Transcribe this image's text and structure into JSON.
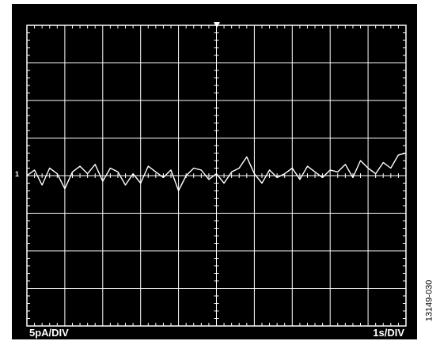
{
  "chart_data": {
    "type": "line",
    "title": "",
    "xlabel": "",
    "ylabel": "",
    "y_scale_label": "5pA/DIV",
    "x_scale_label": "1s/DIV",
    "ground_marker": "1",
    "grid": true,
    "divisions": {
      "x": 10,
      "y": 8
    },
    "xlim": [
      0,
      10
    ],
    "ylim": [
      -4,
      4
    ],
    "x_unit": "s",
    "y_unit": "div",
    "series": [
      {
        "color": "#ffffff",
        "x": [
          0,
          0.2,
          0.4,
          0.6,
          0.8,
          1.0,
          1.2,
          1.4,
          1.6,
          1.8,
          2.0,
          2.2,
          2.4,
          2.6,
          2.8,
          3.0,
          3.2,
          3.4,
          3.6,
          3.8,
          4.0,
          4.2,
          4.4,
          4.6,
          4.8,
          5.0,
          5.2,
          5.4,
          5.6,
          5.8,
          6.0,
          6.2,
          6.4,
          6.6,
          6.8,
          7.0,
          7.2,
          7.4,
          7.6,
          7.8,
          8.0,
          8.2,
          8.4,
          8.6,
          8.8,
          9.0,
          9.2,
          9.4,
          9.6,
          9.8,
          10.0
        ],
        "values": [
          0.0,
          0.15,
          -0.25,
          0.2,
          0.05,
          -0.35,
          0.1,
          0.25,
          0.05,
          0.3,
          -0.15,
          0.2,
          0.1,
          -0.25,
          0.05,
          -0.2,
          0.25,
          0.1,
          -0.05,
          0.15,
          -0.4,
          0.0,
          0.2,
          0.15,
          -0.1,
          0.05,
          -0.2,
          0.1,
          0.2,
          0.5,
          0.05,
          -0.2,
          0.15,
          -0.05,
          0.05,
          0.2,
          -0.1,
          0.25,
          0.1,
          -0.05,
          0.15,
          0.1,
          0.3,
          -0.05,
          0.4,
          0.2,
          0.05,
          0.35,
          0.2,
          0.55,
          0.6
        ]
      }
    ]
  },
  "figure_id": "13149-030"
}
